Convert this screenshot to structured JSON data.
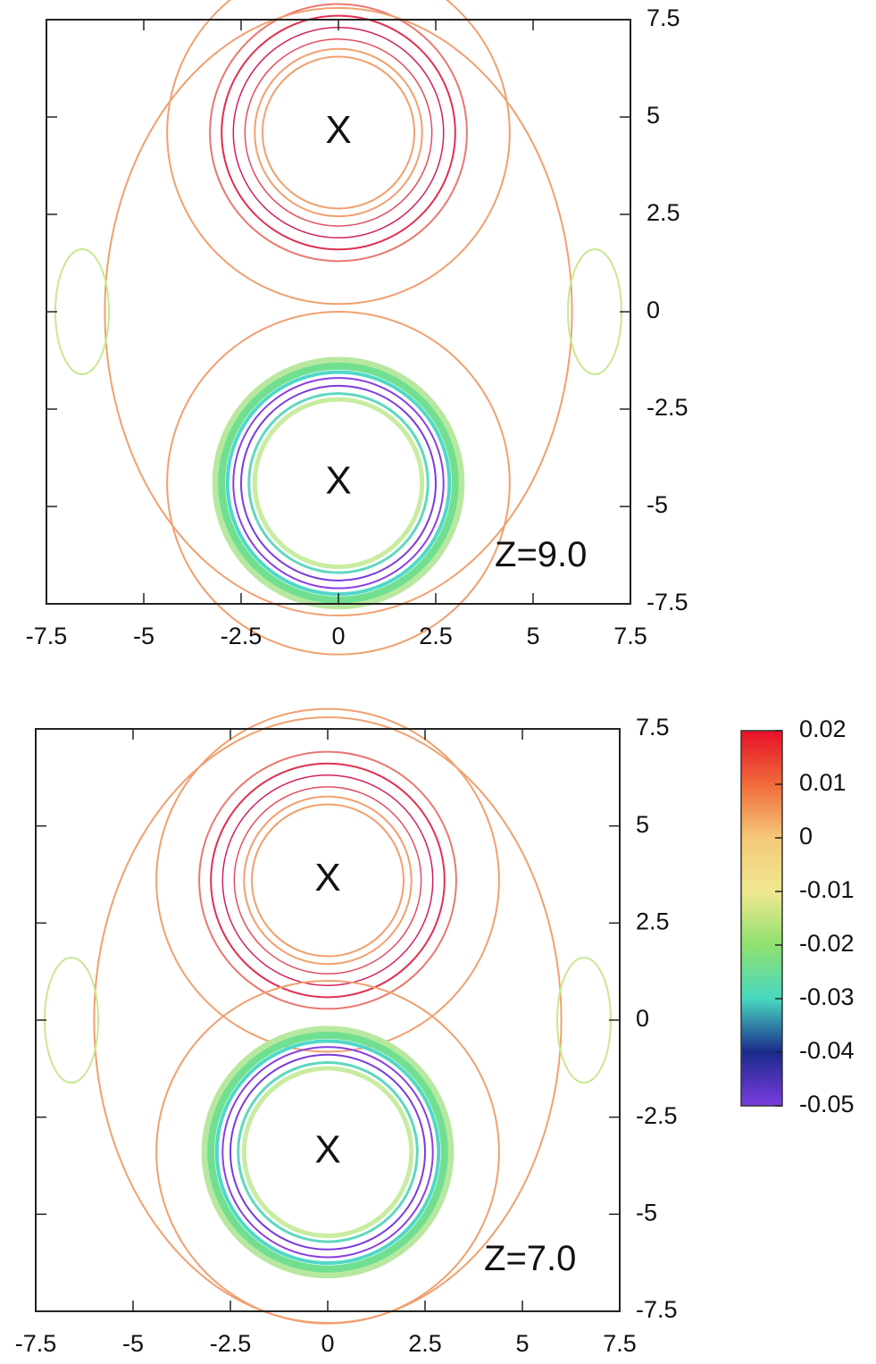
{
  "chart_data": [
    {
      "type": "contour",
      "xlim": [
        -7.5,
        7.5
      ],
      "ylim": [
        -7.5,
        7.5
      ],
      "xticks": [
        -7.5,
        -5,
        -2.5,
        0,
        2.5,
        5,
        7.5
      ],
      "yticks": [
        -7.5,
        -5,
        -2.5,
        0,
        2.5,
        5,
        7.5
      ],
      "annotations": [
        {
          "text": "X",
          "x": 0,
          "y": 4.6
        },
        {
          "text": "X",
          "x": 0,
          "y": -4.4
        },
        {
          "text": "Z=9.0",
          "x": 5.2,
          "y": -6.3
        }
      ]
    },
    {
      "type": "contour",
      "xlim": [
        -7.5,
        7.5
      ],
      "ylim": [
        -7.5,
        7.5
      ],
      "xticks": [
        -7.5,
        -5,
        -2.5,
        0,
        2.5,
        5,
        7.5
      ],
      "yticks": [
        -7.5,
        -5,
        -2.5,
        0,
        2.5,
        5,
        7.5
      ],
      "annotations": [
        {
          "text": "X",
          "x": 0,
          "y": 3.6
        },
        {
          "text": "X",
          "x": 0,
          "y": -3.4
        },
        {
          "text": "Z=7.0",
          "x": 5.2,
          "y": -6.2
        }
      ],
      "colorbar": {
        "clim": [
          -0.05,
          0.02
        ],
        "ticks": [
          0.02,
          0.01,
          0,
          -0.01,
          -0.02,
          -0.03,
          -0.04,
          -0.05
        ],
        "colormap": [
          "#e8102a",
          "#f06a3a",
          "#f5c878",
          "#f0e890",
          "#8fe070",
          "#48d8c0",
          "#1a2a8a",
          "#7a3ce0"
        ]
      }
    }
  ]
}
